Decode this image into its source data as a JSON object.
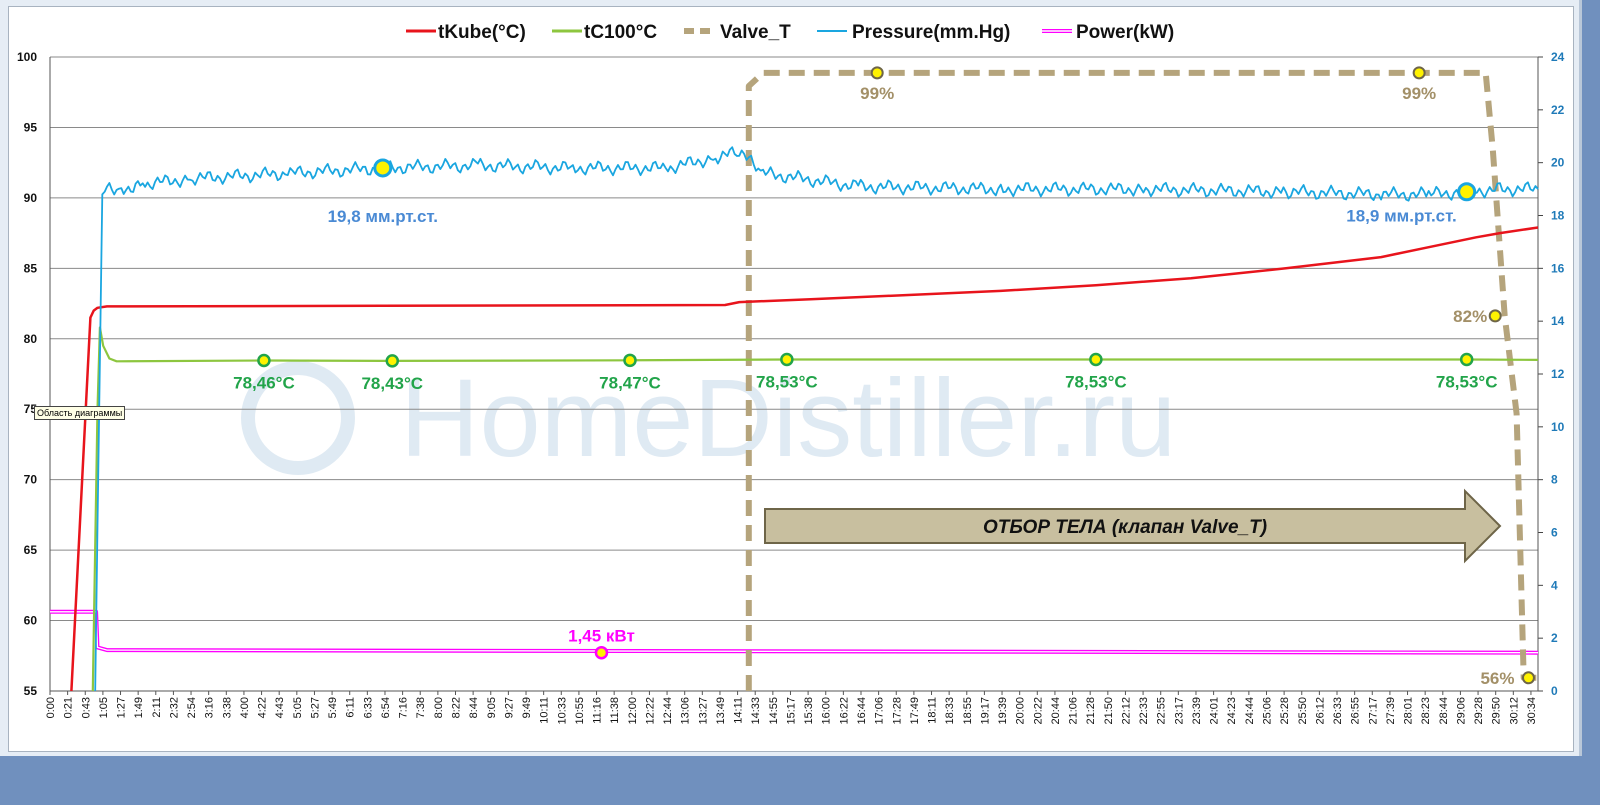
{
  "chart_data": {
    "type": "line",
    "legend": [
      "tKube(°C)",
      "tC100°C",
      "Valve_T",
      "Pressure(mm.Hg)",
      "Power(kW)"
    ],
    "legend_position": "top",
    "colors": {
      "tKube": "#e8141c",
      "tC100": "#8dc63f",
      "Valve_T": "#b5a47c",
      "Pressure": "#1aa6e0",
      "Power": "#ff00ff"
    },
    "y_left": {
      "min": 55,
      "max": 100,
      "ticks": [
        "100",
        "95",
        "90",
        "85",
        "80",
        "75",
        "70",
        "65",
        "60",
        "55"
      ]
    },
    "y_right": {
      "min": 0,
      "max": 24,
      "ticks": [
        "24",
        "22",
        "20",
        "18",
        "16",
        "14",
        "12",
        "10",
        "8",
        "6",
        "4",
        "2",
        "0"
      ]
    },
    "x_range_minutes": [
      0,
      31.3
    ],
    "x_ticks": [
      "0:00",
      "0:21",
      "0:43",
      "1:05",
      "1:27",
      "1:49",
      "2:11",
      "2:32",
      "2:54",
      "3:16",
      "3:38",
      "4:00",
      "4:22",
      "4:43",
      "5:05",
      "5:27",
      "5:49",
      "6:11",
      "6:33",
      "6:54",
      "7:16",
      "7:38",
      "8:00",
      "8:22",
      "8:44",
      "9:05",
      "9:27",
      "9:49",
      "10:11",
      "10:33",
      "10:55",
      "11:16",
      "11:38",
      "12:00",
      "12:22",
      "12:44",
      "13:06",
      "13:27",
      "13:49",
      "14:11",
      "14:33",
      "14:55",
      "15:17",
      "15:38",
      "16:00",
      "16:22",
      "16:44",
      "17:06",
      "17:28",
      "17:49",
      "18:11",
      "18:33",
      "18:55",
      "19:17",
      "19:39",
      "20:00",
      "20:22",
      "20:44",
      "21:06",
      "21:28",
      "21:50",
      "22:12",
      "22:33",
      "22:55",
      "23:17",
      "23:39",
      "24:01",
      "24:23",
      "24:44",
      "25:06",
      "25:28",
      "25:50",
      "26:12",
      "26:33",
      "26:55",
      "27:17",
      "27:39",
      "28:01",
      "28:23",
      "28:44",
      "29:06",
      "29:28",
      "29:50",
      "30:12",
      "30:34"
    ],
    "series": [
      {
        "name": "tKube(°C)",
        "axis": "left",
        "x": [
          0.45,
          0.85,
          0.92,
          1.0,
          1.2,
          14.2,
          14.5,
          16,
          18,
          20,
          22,
          24,
          26,
          28,
          29,
          30,
          30.5,
          31.3
        ],
        "y": [
          55,
          81.5,
          82.0,
          82.2,
          82.3,
          82.4,
          82.6,
          82.8,
          83.1,
          83.4,
          83.8,
          84.3,
          85.0,
          85.8,
          86.5,
          87.2,
          87.5,
          87.9
        ]
      },
      {
        "name": "tC100°C",
        "axis": "left",
        "x": [
          0.9,
          1.0,
          1.05,
          1.12,
          1.25,
          1.4,
          4.5,
          7.2,
          12.2,
          15.5,
          22.0,
          29.8,
          31.3
        ],
        "y": [
          55,
          75,
          80.8,
          79.5,
          78.6,
          78.4,
          78.46,
          78.43,
          78.47,
          78.53,
          78.53,
          78.53,
          78.5
        ]
      },
      {
        "name": "Valve_T",
        "axis": "right",
        "style": "dashed",
        "x": [
          14.7,
          14.7,
          15.0,
          30.2,
          30.35,
          30.6,
          30.85,
          31.0,
          31.3
        ],
        "y": [
          0,
          22.9,
          23.4,
          23.4,
          20.5,
          14.2,
          10.5,
          0.5,
          0.5
        ]
      },
      {
        "name": "Pressure(mm.Hg)",
        "axis": "right",
        "x": [
          0.95,
          1.1,
          1.2,
          1.5,
          2.0,
          3.0,
          5.0,
          7.0,
          9.0,
          11.0,
          13.0,
          14.0,
          14.5,
          15.0,
          17.0,
          20.0,
          23.0,
          26.0,
          28.0,
          29.0,
          29.8,
          30.5,
          31.3
        ],
        "y": [
          0,
          18.8,
          19.0,
          19.0,
          19.2,
          19.4,
          19.6,
          19.8,
          19.9,
          19.8,
          19.8,
          20.2,
          20.4,
          19.6,
          19.1,
          19.0,
          19.0,
          18.9,
          18.8,
          18.8,
          18.9,
          19.0,
          19.0
        ]
      },
      {
        "name": "Power(kW)",
        "axis": "right",
        "x": [
          0.0,
          0.97,
          1.0,
          1.2,
          31.3
        ],
        "y": [
          3.0,
          3.0,
          1.65,
          1.55,
          1.45
        ]
      }
    ],
    "annotations": [
      {
        "text": "19,8 мм.рт.ст.",
        "x": 7.0,
        "y": 19.8,
        "axis": "right",
        "color": "#4a8ad4"
      },
      {
        "text": "18,9 мм.рт.ст.",
        "x": 29.8,
        "y": 18.9,
        "axis": "right",
        "color": "#4a8ad4"
      },
      {
        "text": "78,46°C",
        "x": 4.5,
        "y": 78.46,
        "color": "#22a44a"
      },
      {
        "text": "78,43°C",
        "x": 7.2,
        "y": 78.43,
        "color": "#22a44a"
      },
      {
        "text": "78,47°C",
        "x": 12.2,
        "y": 78.47,
        "color": "#22a44a"
      },
      {
        "text": "78,53°C",
        "x": 15.5,
        "y": 78.53,
        "color": "#22a44a"
      },
      {
        "text": "78,53°C",
        "x": 22.0,
        "y": 78.53,
        "color": "#22a44a"
      },
      {
        "text": "78,53°C",
        "x": 29.8,
        "y": 78.53,
        "color": "#22a44a"
      },
      {
        "text": "99%",
        "x": 17.4,
        "y": 23.4,
        "axis": "right",
        "color": "#a39068"
      },
      {
        "text": "99%",
        "x": 28.8,
        "y": 23.4,
        "axis": "right",
        "color": "#a39068"
      },
      {
        "text": "82%",
        "x": 30.4,
        "y": 14.2,
        "axis": "right",
        "color": "#a39068"
      },
      {
        "text": "56%",
        "x": 31.1,
        "y": 0.5,
        "axis": "right",
        "color": "#a39068"
      },
      {
        "text": "1,45 кВт",
        "x": 11.6,
        "y": 1.45,
        "axis": "right",
        "color": "#ff00ff"
      }
    ],
    "arrow_label": "ОТБОР  ТЕЛА  (клапан Valve_T)",
    "watermark": "HomeDistiller.ru",
    "grid": true
  },
  "tooltip": "Область диаграммы"
}
